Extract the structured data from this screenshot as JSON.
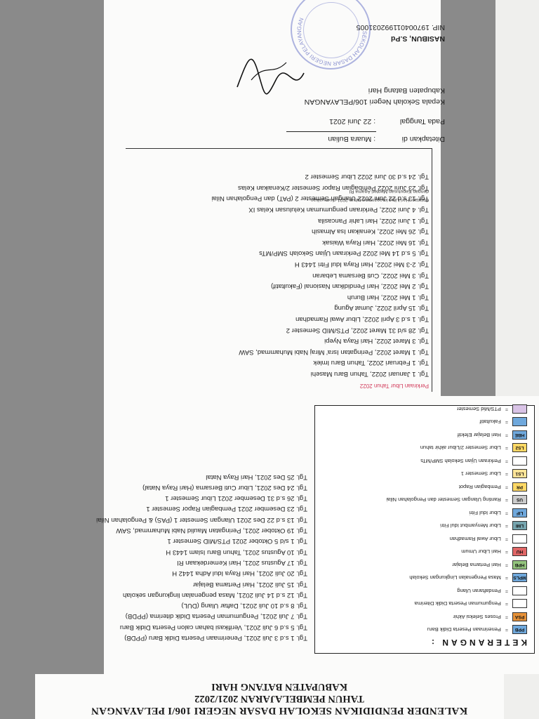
{
  "title": {
    "line1": "KALENDER PENDIDIKAN SEKOLAH DASAR NEGERI 106/I PELAYANGAN",
    "line2": "TAHUN PEMBELAJARAN 2021/2022",
    "line3": "KABUPATEN BATANG HARI"
  },
  "legend": {
    "title": "KETERANGAN :",
    "items": [
      {
        "code": "PPB",
        "color": "#6fa8dc",
        "label": "Penerimaan Peserta Didik Baru"
      },
      {
        "code": "PSA",
        "color": "#e69138",
        "label": "Proses Seleksi Akhir"
      },
      {
        "code": "",
        "color": "#ffffff",
        "label": "Pengumuman Peserta Didik Diterima"
      },
      {
        "code": "",
        "color": "#ffffff",
        "label": "Pendaftaran Ulang"
      },
      {
        "code": "MPLS",
        "color": "#6fa8dc",
        "label": "Masa Pengenalan Lingkungan Sekolah"
      },
      {
        "code": "HPB",
        "color": "#93c47d",
        "label": "Hari Pertama Belajar"
      },
      {
        "code": "HU",
        "color": "#e06666",
        "label": "Hari Libur Umum"
      },
      {
        "code": "",
        "color": "#ffffff",
        "label": "Libur Awal Ramadhan"
      },
      {
        "code": "LMI",
        "color": "#76a5af",
        "label": "Libur Menyambut Idul Fitri"
      },
      {
        "code": "LIF",
        "color": "#6fa8dc",
        "label": "Libur Idul Fitri"
      },
      {
        "code": "US",
        "color": "#cccccc",
        "label": "Ranting Ulangan Semester dan Pengolahan Nilai"
      },
      {
        "code": "PR",
        "color": "#ffd966",
        "label": "Pembagian Rapot"
      },
      {
        "code": "LS1",
        "color": "#ffe599",
        "label": "Libur Semester 1"
      },
      {
        "code": "",
        "color": "#ffffff",
        "label": "Perkiraan Ujian Sekolah SMP/MTs"
      },
      {
        "code": "LS2",
        "color": "#ffd966",
        "label": "Libur Semester 2/Libur akhir tahun"
      },
      {
        "code": "HBE",
        "color": "#6fa8dc",
        "label": "Hari Belajar Efektif"
      },
      {
        "code": "",
        "color": "#6fa8dc",
        "label": "Fakultatif"
      },
      {
        "code": "",
        "color": "#d9c3e6",
        "label": "PTS/Mid Semester"
      }
    ]
  },
  "activities_2021": [
    "Tgl. 1 s.d 3 Juli 2021, Penerimaan Peserta Didik Baru (PPDB)",
    "Tgl. 5 s.d 6 Juli 2021, Verifikasi bahan calon Peserta Didik Baru",
    "Tgl. 7 Juli 2021, Pengumuman Peserta Didik diterima (PPDB)",
    "Tgl. 8 s.d 10 Juli 2021, Daftar Ulang (DUL)",
    "Tgl. 12 s.d 14 Juli 2021, Masa pengenalan lingkungan sekolah",
    "Tgl. 15 Juli 2021, Hari Pertama Belajar",
    "Tgl. 20 Juli 2021, Hari Raya Idul Adha 1442 H",
    "Tgl. 17 Agustus 2021, Hari Kemerdekaan RI",
    "Tgl. 10 Agustus 2021, Tahun Baru Islam 1443 H",
    "Tgl. 1 s/d 5 Oktober 2021 PTS/MID Semester 1",
    "Tgl. 19 Oktober 2021, Peringatan Maulid Nabi Muhammad, SAW",
    "Tgl. 13 s.d 22 Des 2021 Ulangan Semester 1 (PAS) & Pengolahan  Nilai",
    "Tgl. 23 Desember 2021 Pembagian Rapor Semester 1",
    "Tgl. 26 s.d 31 Desember 2021 Libur Semester 1",
    "Tgl. 24 Des 2021, Libur Cuti Bersama (Hari Raya Natal)",
    "Tgl. 25 Des 2021, Hari Raya Natal"
  ],
  "holidays_2022": {
    "heading": "Perkiraan Libur Tahun 2022",
    "items": [
      "Tgl. 1 Januari 2022, Tahun Baru Masehi",
      "Tgl. 1 Februari 2022, Tahun Baru Imlek",
      "Tgl. 1 Maret 2022, Peringatan Isra' Miraj Nabi Muhammad, SAW",
      "Tgl. 3 Maret 2022, Hari Raya Nyepi",
      "Tgl. 28 s/d 31 Maret 2022, PTS/MID Semester 2",
      "Tgl. 1 s.d 3 April 2022, Libur Awal Ramadhan",
      "Tgl. 15 April 2022, Jumat Agung",
      "Tgl. 1 Mei 2022, Hari Buruh",
      "Tgl. 2 Mei 2022, Hari Pendidikan Nasional (Fakultatif)",
      "Tgl. 3 Mei 2022, Cuti Bersama Lebaran",
      "Tgl. 2-3 Mei 2022, Hari Raya Idul Fitri 1443 H",
      "Tgl. 5 s.d 14 Mei 2022 Perkiraan Ujian Sekolah SMP/MTs",
      "Tgl. 16 Mei 2022, Hari Raya Waisak",
      "Tgl. 26 Mei 2022, Kenaikan Isa Almasih",
      "Tgl. 1 Juni 2022, Hari Lahir Pancasila",
      "Tgl. 4 Juni 2022, Perkiraan pengumuman Kelulusan Kelas IX",
      "Tgl. 13 s.d 22 Juni 2022 Ulangan Semester 2 (PAT) dan Pengolahan Nilai",
      "Tgl. 23 Juni 2022 Pembagian Rapor Semester 2/Kenaikan Kelas",
      "Tgl. 24 s.d 30 Juni 2022 Libur Semester 2"
    ],
    "note_line1": "Catatan: Hari Libur keagamaan tahun 2021 disesuaikan",
    "note_line2": "dengan Keputusan Menteri Agama RI"
  },
  "signature": {
    "set_at_label": "Ditetapkan di",
    "set_at_value": ": Muara Bulian",
    "date_label": "Pada Tanggal",
    "date_value": ":  22  Juni 2021",
    "position_line1": "Kepala Sekolah Negeri 106/PELAYANGAN",
    "position_line2": "Kabupaten Batang Hari",
    "name": "NASIBUN, S.Pd",
    "nip": "NIP. 197004011992031005",
    "stamp_text": "SEKOLAH DASAR NEGERI PELAYANGAN"
  }
}
